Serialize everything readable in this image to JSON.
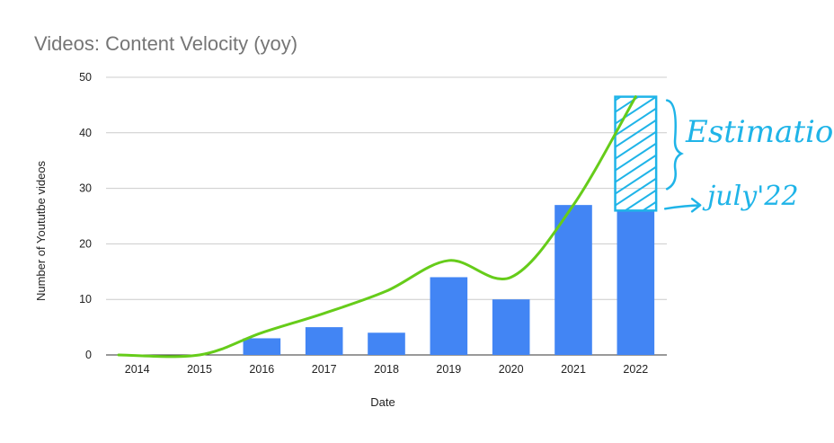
{
  "chart_data": {
    "type": "bar",
    "title": "Videos: Content Velocity (yoy)",
    "xlabel": "Date",
    "ylabel": "Number of Yoututbe videos",
    "categories": [
      "2014",
      "2015",
      "2016",
      "2017",
      "2018",
      "2019",
      "2020",
      "2021",
      "2022"
    ],
    "values": [
      0,
      0,
      3,
      5,
      4,
      14,
      10,
      27,
      26
    ],
    "ylim": [
      0,
      50
    ],
    "yticks": [
      "0",
      "10",
      "20",
      "30",
      "40",
      "50"
    ],
    "grid": true,
    "bar_color": "#4285f4",
    "trend_line": {
      "color": "#66cc1a",
      "x": [
        "2014",
        "2015",
        "2016",
        "2017",
        "2018",
        "2019",
        "2020",
        "2021",
        "2022"
      ],
      "y": [
        0,
        0,
        4,
        7.5,
        11.5,
        17,
        14,
        27,
        46.5
      ]
    },
    "estimation_box": {
      "category": "2022",
      "from": 26,
      "to": 46.5,
      "color": "#1fb4e8"
    },
    "annotations": {
      "estimation": "Estimation",
      "july": "july'22"
    }
  }
}
